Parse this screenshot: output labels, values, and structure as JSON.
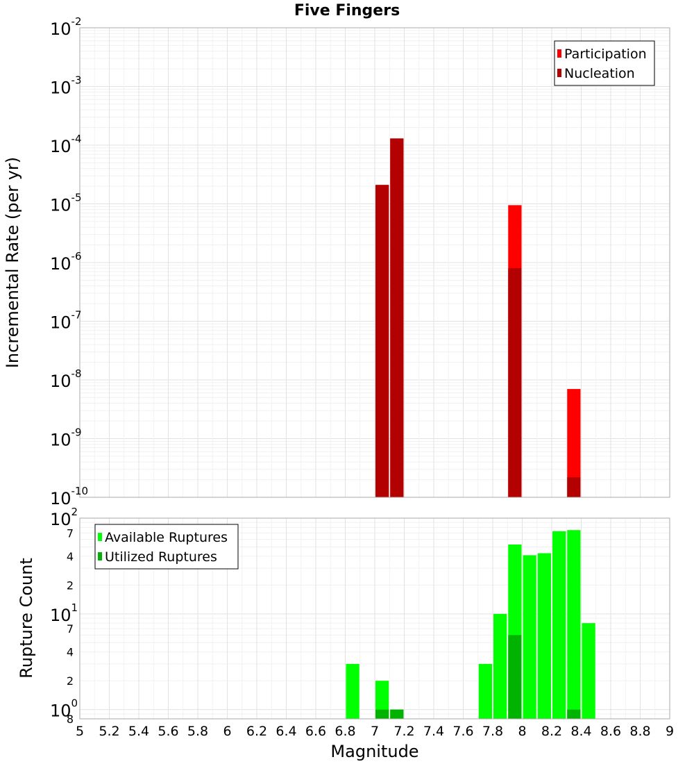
{
  "chart_data": [
    {
      "type": "bar",
      "title": "Five Fingers",
      "ylabel": "Incremental Rate (per yr)",
      "xlabel": "",
      "y_scale": "log",
      "ylim": [
        1e-10,
        0.01
      ],
      "y_ticks": [
        {
          "value": 1e-10,
          "base": "10",
          "exp": "-10"
        },
        {
          "value": 1e-09,
          "base": "10",
          "exp": "-9"
        },
        {
          "value": 1e-08,
          "base": "10",
          "exp": "-8"
        },
        {
          "value": 1e-07,
          "base": "10",
          "exp": "-7"
        },
        {
          "value": 1e-06,
          "base": "10",
          "exp": "-6"
        },
        {
          "value": 1e-05,
          "base": "10",
          "exp": "-5"
        },
        {
          "value": 0.0001,
          "base": "10",
          "exp": "-4"
        },
        {
          "value": 0.001,
          "base": "10",
          "exp": "-3"
        },
        {
          "value": 0.01,
          "base": "10",
          "exp": "-2"
        }
      ],
      "legend_position": "top-right",
      "grid": true,
      "bar_width": 0.1,
      "series": [
        {
          "name": "Participation",
          "color": "#ff0000",
          "x": [
            7.05,
            7.15,
            7.95,
            8.35
          ],
          "values": [
            2.1e-05,
            0.00013,
            9.5e-06,
            7e-09
          ]
        },
        {
          "name": "Nucleation",
          "color": "#b30000",
          "x": [
            7.05,
            7.15,
            7.95,
            8.35
          ],
          "values": [
            2.1e-05,
            0.00013,
            8e-07,
            2.2e-10
          ]
        }
      ]
    },
    {
      "type": "bar",
      "title": "",
      "ylabel": "Rupture Count",
      "xlabel": "Magnitude",
      "y_scale": "log",
      "ylim": [
        0.8,
        100
      ],
      "y_ticks": [
        {
          "value": 1,
          "base": "10",
          "exp": "0"
        },
        {
          "value": 10,
          "base": "10",
          "exp": "1"
        },
        {
          "value": 100,
          "base": "10",
          "exp": "2"
        }
      ],
      "y_minor_labels": [
        {
          "value": 0.8,
          "label": "8"
        },
        {
          "value": 2,
          "label": "2"
        },
        {
          "value": 4,
          "label": "4"
        },
        {
          "value": 7,
          "label": "7"
        },
        {
          "value": 20,
          "label": "2"
        },
        {
          "value": 40,
          "label": "4"
        },
        {
          "value": 70,
          "label": "7"
        }
      ],
      "xlim": [
        5,
        9
      ],
      "x_ticks": [
        "5",
        "5.2",
        "5.4",
        "5.6",
        "5.8",
        "6",
        "6.2",
        "6.4",
        "6.6",
        "6.8",
        "7",
        "7.2",
        "7.4",
        "7.6",
        "7.8",
        "8",
        "8.2",
        "8.4",
        "8.6",
        "8.8",
        "9"
      ],
      "legend_position": "top-left",
      "grid": true,
      "bar_width": 0.1,
      "series": [
        {
          "name": "Available Ruptures",
          "color": "#00ff00",
          "x": [
            6.85,
            7.05,
            7.15,
            7.75,
            7.85,
            7.95,
            8.05,
            8.15,
            8.25,
            8.35,
            8.45
          ],
          "values": [
            3,
            2,
            1,
            3,
            10,
            53,
            41,
            43,
            73,
            75,
            8
          ]
        },
        {
          "name": "Utilized Ruptures",
          "color": "#00b300",
          "x": [
            7.05,
            7.15,
            7.95,
            8.35
          ],
          "values": [
            1,
            1,
            6,
            1
          ]
        }
      ]
    }
  ]
}
